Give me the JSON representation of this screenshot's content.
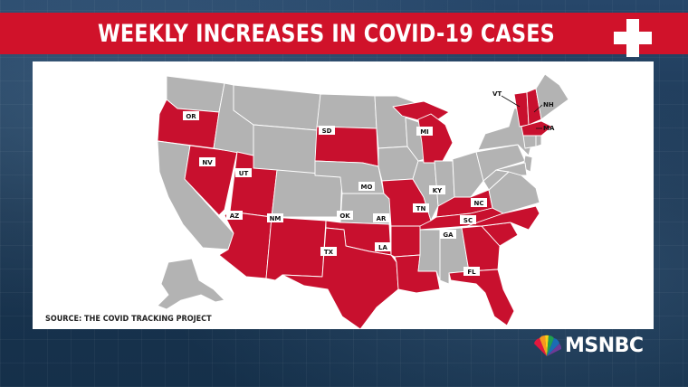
{
  "title": "WEEKLY INCREASES IN COVID-19 CASES",
  "source": "SOURCE: THE COVID TRACKING PROJECT",
  "network": "MSNBC",
  "colors": {
    "increase": "#c8102e",
    "no_increase": "#b3b3b3",
    "banner": "#d0122a"
  },
  "highlighted_states": [
    "OR",
    "NV",
    "UT",
    "AZ",
    "NM",
    "SD",
    "OK",
    "TX",
    "MO",
    "AR",
    "LA",
    "MI",
    "KY",
    "TN",
    "NC",
    "SC",
    "GA",
    "FL",
    "VT",
    "NH",
    "MA"
  ],
  "labels": {
    "OR": "OR",
    "NV": "NV",
    "UT": "UT",
    "AZ": "AZ",
    "NM": "NM",
    "SD": "SD",
    "OK": "OK",
    "TX": "TX",
    "MO": "MO",
    "AR": "AR",
    "LA": "LA",
    "MI": "MI",
    "KY": "KY",
    "TN": "TN",
    "NC": "NC",
    "SC": "SC",
    "GA": "GA",
    "FL": "FL",
    "VT": "VT",
    "NH": "NH",
    "MA": "MA"
  }
}
